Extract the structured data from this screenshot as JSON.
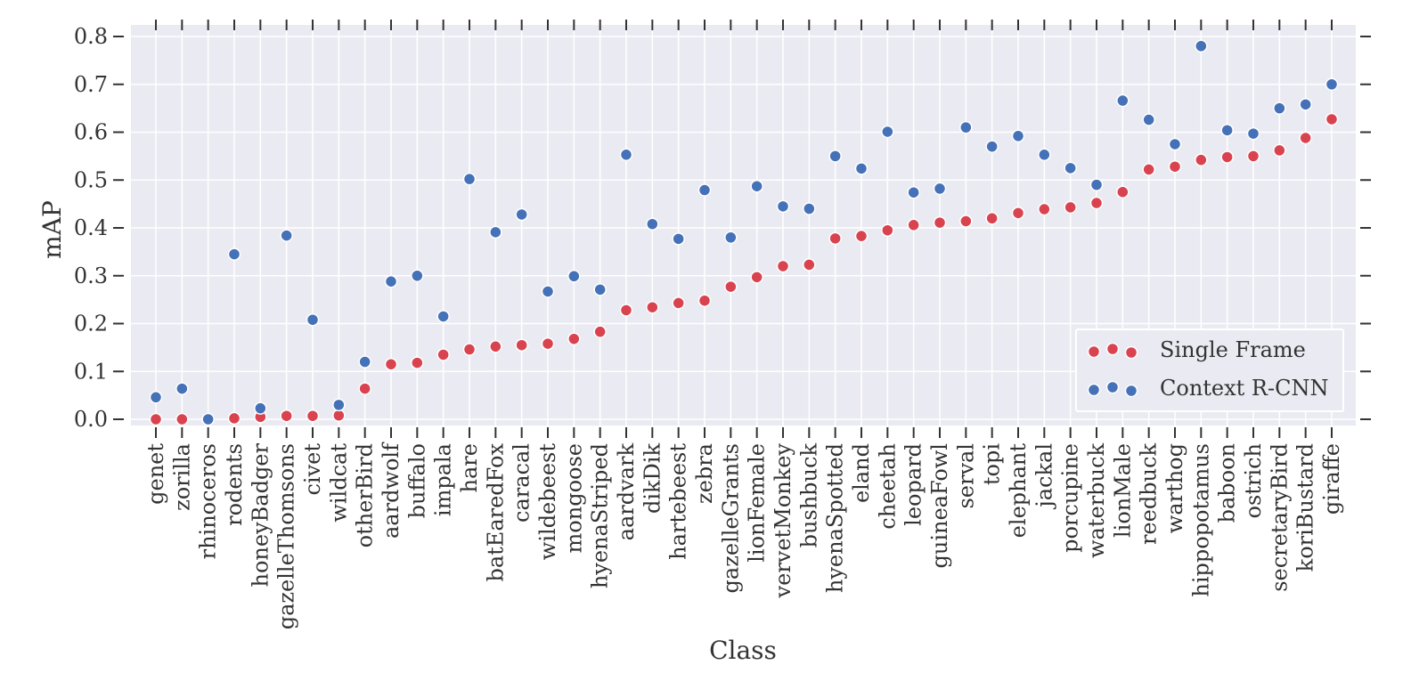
{
  "chart_data": {
    "type": "scatter",
    "xlabel": "Class",
    "ylabel": "mAP",
    "ylim": [
      0.0,
      0.8
    ],
    "yticks": [
      "0.0",
      "0.1",
      "0.2",
      "0.3",
      "0.4",
      "0.5",
      "0.6",
      "0.7",
      "0.8"
    ],
    "grid": true,
    "legend_position": "lower-right",
    "categories": [
      "genet",
      "zorilla",
      "rhinoceros",
      "rodents",
      "honeyBadger",
      "gazelleThomsons",
      "civet",
      "wildcat",
      "otherBird",
      "aardwolf",
      "buffalo",
      "impala",
      "hare",
      "batEaredFox",
      "caracal",
      "wildebeest",
      "mongoose",
      "hyenaStriped",
      "aardvark",
      "dikDik",
      "hartebeest",
      "zebra",
      "gazelleGrants",
      "lionFemale",
      "vervetMonkey",
      "bushbuck",
      "hyenaSpotted",
      "eland",
      "cheetah",
      "leopard",
      "guineaFowl",
      "serval",
      "topi",
      "elephant",
      "jackal",
      "porcupine",
      "waterbuck",
      "lionMale",
      "reedbuck",
      "warthog",
      "hippopotamus",
      "baboon",
      "ostrich",
      "secretaryBird",
      "koriBustard",
      "giraffe"
    ],
    "series": [
      {
        "name": "Single Frame",
        "color": "#d9434f",
        "values": [
          0.0,
          0.0,
          0.0,
          0.002,
          0.005,
          0.007,
          0.007,
          0.008,
          0.064,
          0.115,
          0.118,
          0.135,
          0.146,
          0.152,
          0.155,
          0.158,
          0.168,
          0.183,
          0.228,
          0.234,
          0.243,
          0.248,
          0.277,
          0.297,
          0.32,
          0.323,
          0.378,
          0.383,
          0.395,
          0.406,
          0.411,
          0.414,
          0.42,
          0.431,
          0.439,
          0.443,
          0.452,
          0.475,
          0.522,
          0.528,
          0.542,
          0.548,
          0.55,
          0.562,
          0.588,
          0.627
        ]
      },
      {
        "name": "Context R-CNN",
        "color": "#4471b7",
        "values": [
          0.046,
          0.064,
          0.0,
          0.345,
          0.023,
          0.384,
          0.208,
          0.03,
          0.12,
          0.288,
          0.3,
          0.215,
          0.502,
          0.391,
          0.428,
          0.267,
          0.299,
          0.271,
          0.553,
          0.408,
          0.377,
          0.479,
          0.38,
          0.487,
          0.445,
          0.44,
          0.55,
          0.524,
          0.601,
          0.474,
          0.482,
          0.61,
          0.57,
          0.592,
          0.553,
          0.525,
          0.49,
          0.666,
          0.626,
          0.575,
          0.78,
          0.604,
          0.597,
          0.65,
          0.658,
          0.7
        ]
      }
    ]
  }
}
